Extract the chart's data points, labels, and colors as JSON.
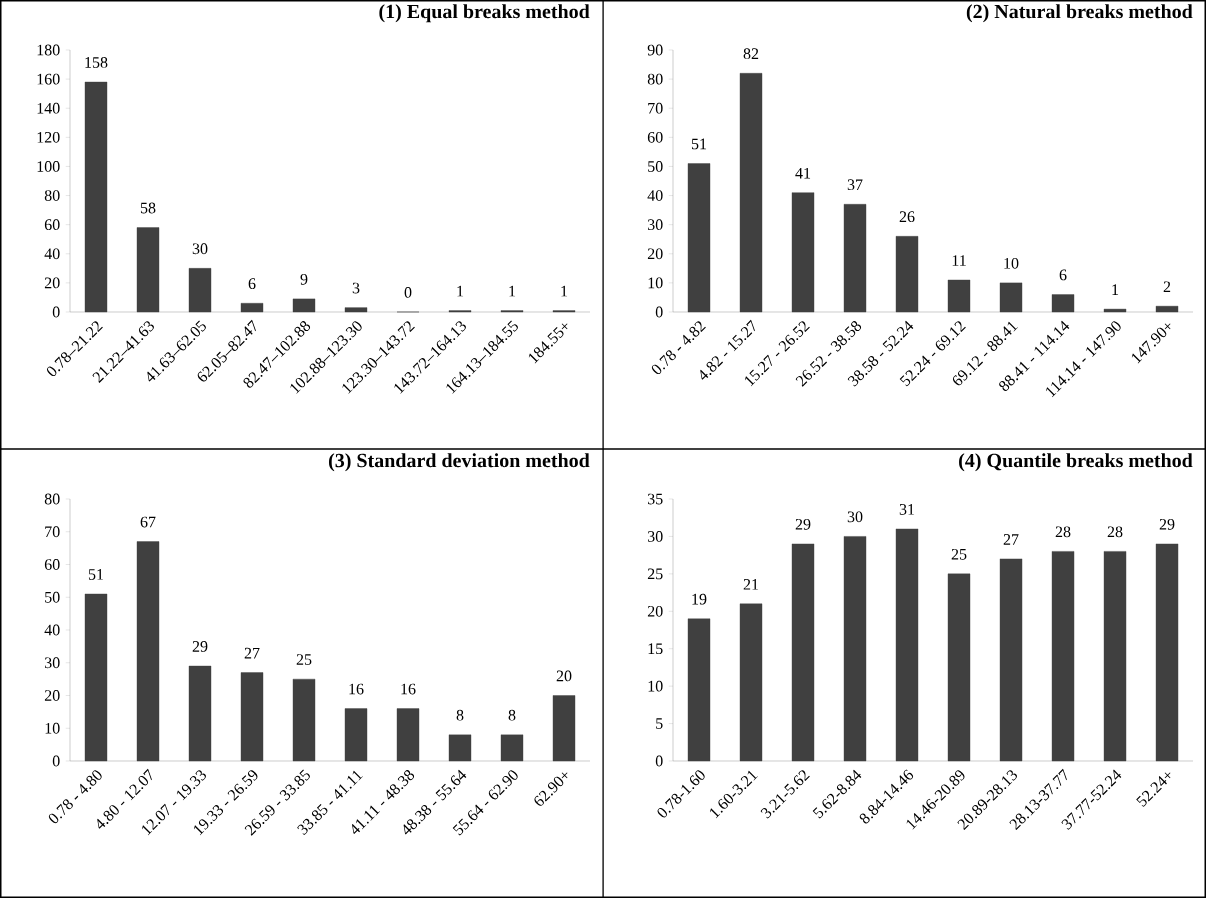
{
  "chart_data": [
    {
      "type": "bar",
      "title": "(1) Equal breaks method",
      "categories": [
        "0.78–21.22",
        "21.22–41.63",
        "41.63–62.05",
        "62.05–82.47",
        "82.47–102.88",
        "102.88–123.30",
        "123.30–143.72",
        "143.72–164.13",
        "164.13–184.55",
        "184.55+"
      ],
      "values": [
        158,
        58,
        30,
        6,
        9,
        3,
        0,
        1,
        1,
        1
      ],
      "color": "#404040",
      "ylim": [
        0,
        180
      ],
      "yticks": [
        0,
        20,
        40,
        60,
        80,
        100,
        120,
        140,
        160,
        180
      ],
      "data_labels": true,
      "grid": false
    },
    {
      "type": "bar",
      "title": "(2) Natural breaks method",
      "categories": [
        "0.78 - 4.82",
        "4.82 - 15.27",
        "15.27 - 26.52",
        "26.52 - 38.58",
        "38.58 - 52.24",
        "52.24 - 69.12",
        "69.12 - 88.41",
        "88.41 - 114.14",
        "114.14 - 147.90",
        "147.90+"
      ],
      "values": [
        51,
        82,
        41,
        37,
        26,
        11,
        10,
        6,
        1,
        2
      ],
      "color": "#404040",
      "ylim": [
        0,
        90
      ],
      "yticks": [
        0,
        10,
        20,
        30,
        40,
        50,
        60,
        70,
        80,
        90
      ],
      "data_labels": true,
      "grid": false
    },
    {
      "type": "bar",
      "title": "(3) Standard deviation method",
      "categories": [
        "0.78 - 4.80",
        "4.80 - 12.07",
        "12.07 - 19.33",
        "19.33 - 26.59",
        "26.59 - 33.85",
        "33.85 - 41.11",
        "41.11 - 48.38",
        "48.38 - 55.64",
        "55.64 - 62.90",
        "62.90+"
      ],
      "values": [
        51,
        67,
        29,
        27,
        25,
        16,
        16,
        8,
        8,
        20
      ],
      "color": "#404040",
      "ylim": [
        0,
        80
      ],
      "yticks": [
        0,
        10,
        20,
        30,
        40,
        50,
        60,
        70,
        80
      ],
      "data_labels": true,
      "grid": false
    },
    {
      "type": "bar",
      "title": "(4) Quantile breaks method",
      "categories": [
        "0.78-1.60",
        "1.60-3.21",
        "3.21-5.62",
        "5.62-8.84",
        "8.84-14.46",
        "14.46-20.89",
        "20.89-28.13",
        "28.13-37.77",
        "37.77-52.24",
        "52.24+"
      ],
      "values": [
        19,
        21,
        29,
        30,
        31,
        25,
        27,
        28,
        28,
        29
      ],
      "color": "#404040",
      "ylim": [
        0,
        35
      ],
      "yticks": [
        0,
        5,
        10,
        15,
        20,
        25,
        30,
        35
      ],
      "data_labels": true,
      "grid": false
    }
  ]
}
